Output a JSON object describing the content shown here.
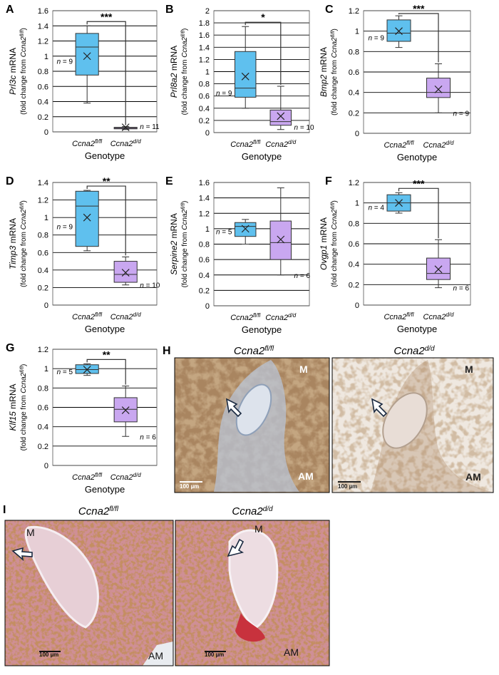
{
  "colors": {
    "blue": "#5fc0ee",
    "purple": "#c9a7f0",
    "grid": "#000000",
    "tissue_brown": "#a4774d",
    "he_pink": "#d79aa8"
  },
  "chart_data": [
    {
      "panel": "A",
      "type": "box",
      "ylabel_gene": "Prl3c",
      "ylabel_rest": " mRNA",
      "ylabel2": "(fold change from Ccna2fl/fl)",
      "xlabel": "Genotype",
      "ylim": [
        0,
        1.6
      ],
      "ticks": [
        "0",
        "0.2",
        "0.4",
        "0.6",
        "0.8",
        "1",
        "1.2",
        "1.4",
        "1.6"
      ],
      "tick_values": [
        0,
        0.2,
        0.4,
        0.6,
        0.8,
        1,
        1.2,
        1.4,
        1.6
      ],
      "categories": [
        "Ccna2fl/fl",
        "Ccna2d/d"
      ],
      "boxes": [
        {
          "min": 0.38,
          "q1": 0.75,
          "median": 1.12,
          "q3": 1.3,
          "max": 1.4,
          "mean": 1.0,
          "n": "n = 9"
        },
        {
          "min": 0.03,
          "q1": 0.04,
          "median": 0.05,
          "q3": 0.06,
          "max": 0.07,
          "mean": 0.06,
          "n": "n = 11"
        }
      ],
      "sig": "***"
    },
    {
      "panel": "B",
      "type": "box",
      "ylabel_gene": "Prl8a2",
      "ylabel_rest": " mRNA",
      "ylabel2": "(fold change from Ccna2fl/fl)",
      "xlabel": "Genotype",
      "ylim": [
        0,
        2
      ],
      "ticks": [
        "0",
        "0.2",
        "0.4",
        "0.6",
        "0.8",
        "1",
        "1.2",
        "1.4",
        "1.6",
        "1.8",
        "2"
      ],
      "tick_values": [
        0,
        0.2,
        0.4,
        0.6,
        0.8,
        1,
        1.2,
        1.4,
        1.6,
        1.8,
        2
      ],
      "categories": [
        "Ccna2fl/fl",
        "Ccna2d/d"
      ],
      "boxes": [
        {
          "min": 0.4,
          "q1": 0.58,
          "median": 0.73,
          "q3": 1.33,
          "max": 1.74,
          "mean": 0.92,
          "n": "n = 9"
        },
        {
          "min": 0.05,
          "q1": 0.12,
          "median": 0.18,
          "q3": 0.37,
          "max": 0.76,
          "mean": 0.27,
          "n": "n = 10"
        }
      ],
      "sig": "*"
    },
    {
      "panel": "C",
      "type": "box",
      "ylabel_gene": "Bmp2",
      "ylabel_rest": " mRNA",
      "ylabel2": "(fold change from Ccna2fl/fl)",
      "xlabel": "Genotype",
      "ylim": [
        0,
        1.2
      ],
      "ticks": [
        "0",
        "0.2",
        "0.4",
        "0.6",
        "0.8",
        "1",
        "1.2"
      ],
      "tick_values": [
        0,
        0.2,
        0.4,
        0.6,
        0.8,
        1,
        1.2
      ],
      "categories": [
        "Ccna2fl/fl",
        "Ccna2d/d"
      ],
      "boxes": [
        {
          "min": 0.84,
          "q1": 0.9,
          "median": 0.98,
          "q3": 1.11,
          "max": 1.15,
          "mean": 1.0,
          "n": "n = 9"
        },
        {
          "min": 0.2,
          "q1": 0.35,
          "median": 0.4,
          "q3": 0.54,
          "max": 0.68,
          "mean": 0.43,
          "n": "n = 9"
        }
      ],
      "sig": "***"
    },
    {
      "panel": "D",
      "type": "box",
      "ylabel_gene": "Timp3",
      "ylabel_rest": " mRNA",
      "ylabel2": "(fold change from Ccna2fl/fl)",
      "xlabel": "Genotype",
      "ylim": [
        0,
        1.4
      ],
      "ticks": [
        "0",
        "0.2",
        "0.4",
        "0.6",
        "0.8",
        "1",
        "1.2",
        "1.4"
      ],
      "tick_values": [
        0,
        0.2,
        0.4,
        0.6,
        0.8,
        1,
        1.2,
        1.4
      ],
      "categories": [
        "Ccna2fl/fl",
        "Ccna2d/d"
      ],
      "boxes": [
        {
          "min": 0.62,
          "q1": 0.67,
          "median": 1.13,
          "q3": 1.3,
          "max": 1.31,
          "mean": 1.0,
          "n": "n = 9"
        },
        {
          "min": 0.23,
          "q1": 0.26,
          "median": 0.35,
          "q3": 0.5,
          "max": 0.55,
          "mean": 0.37,
          "n": "n = 10"
        }
      ],
      "sig": "**"
    },
    {
      "panel": "E",
      "type": "box",
      "ylabel_gene": "Serpine2",
      "ylabel_rest": " mRNA",
      "ylabel2": "(fold change from Ccna2fl/fl)",
      "xlabel": "Genotype",
      "ylim": [
        0,
        1.6
      ],
      "ticks": [
        "0",
        "0.2",
        "0.4",
        "0.6",
        "0.8",
        "1",
        "1.2",
        "1.4",
        "1.6"
      ],
      "tick_values": [
        0,
        0.2,
        0.4,
        0.6,
        0.8,
        1,
        1.2,
        1.4,
        1.6
      ],
      "categories": [
        "Ccna2fl/fl",
        "Ccna2d/d"
      ],
      "boxes": [
        {
          "min": 0.8,
          "q1": 0.9,
          "median": 1.03,
          "q3": 1.08,
          "max": 1.12,
          "mean": 1.0,
          "n": "n = 5"
        },
        {
          "min": 0.4,
          "q1": 0.6,
          "median": 0.82,
          "q3": 1.1,
          "max": 1.53,
          "mean": 0.86,
          "n": "n = 6"
        }
      ],
      "sig": ""
    },
    {
      "panel": "F",
      "type": "box",
      "ylabel_gene": "Ovgp1",
      "ylabel_rest": " mRNA",
      "ylabel2": "(fold change from Ccna2fl/fl)",
      "xlabel": "Genotype",
      "ylim": [
        0,
        1.2
      ],
      "ticks": [
        "0",
        "0.2",
        "0.4",
        "0.6",
        "0.8",
        "1",
        "1.2"
      ],
      "tick_values": [
        0,
        0.2,
        0.4,
        0.6,
        0.8,
        1,
        1.2
      ],
      "categories": [
        "Ccna2fl/fl",
        "Ccna2d/d"
      ],
      "boxes": [
        {
          "min": 0.9,
          "q1": 0.92,
          "median": 1.0,
          "q3": 1.08,
          "max": 1.1,
          "mean": 1.0,
          "n": "n = 4"
        },
        {
          "min": 0.17,
          "q1": 0.25,
          "median": 0.31,
          "q3": 0.46,
          "max": 0.64,
          "mean": 0.35,
          "n": "n = 6"
        }
      ],
      "sig": "***"
    },
    {
      "panel": "G",
      "type": "box",
      "ylabel_gene": "Klf15",
      "ylabel_rest": " mRNA",
      "ylabel2": "(fold change from Ccna2fl/fl)",
      "xlabel": "Genotype",
      "ylim": [
        0,
        1.2
      ],
      "ticks": [
        "0",
        "0.2",
        "0.4",
        "0.6",
        "0.8",
        "1",
        "1.2"
      ],
      "tick_values": [
        0,
        0.2,
        0.4,
        0.6,
        0.8,
        1,
        1.2
      ],
      "categories": [
        "Ccna2fl/fl",
        "Ccna2d/d"
      ],
      "boxes": [
        {
          "min": 0.93,
          "q1": 0.95,
          "median": 0.99,
          "q3": 1.04,
          "max": 1.05,
          "mean": 0.99,
          "n": "n = 5"
        },
        {
          "min": 0.3,
          "q1": 0.45,
          "median": 0.58,
          "q3": 0.7,
          "max": 0.82,
          "mean": 0.57,
          "n": "n = 6"
        }
      ],
      "sig": "**"
    }
  ],
  "images": {
    "H": {
      "letter": "H",
      "left_title": "Ccna2fl/fl",
      "right_title": "Ccna2d/d",
      "label_m": "M",
      "label_am": "AM",
      "scale": "100 µm"
    },
    "I": {
      "letter": "I",
      "left_title": "Ccna2fl/fl",
      "right_title": "Ccna2d/d",
      "label_m": "M",
      "label_am": "AM",
      "scale": "100 µm"
    }
  }
}
